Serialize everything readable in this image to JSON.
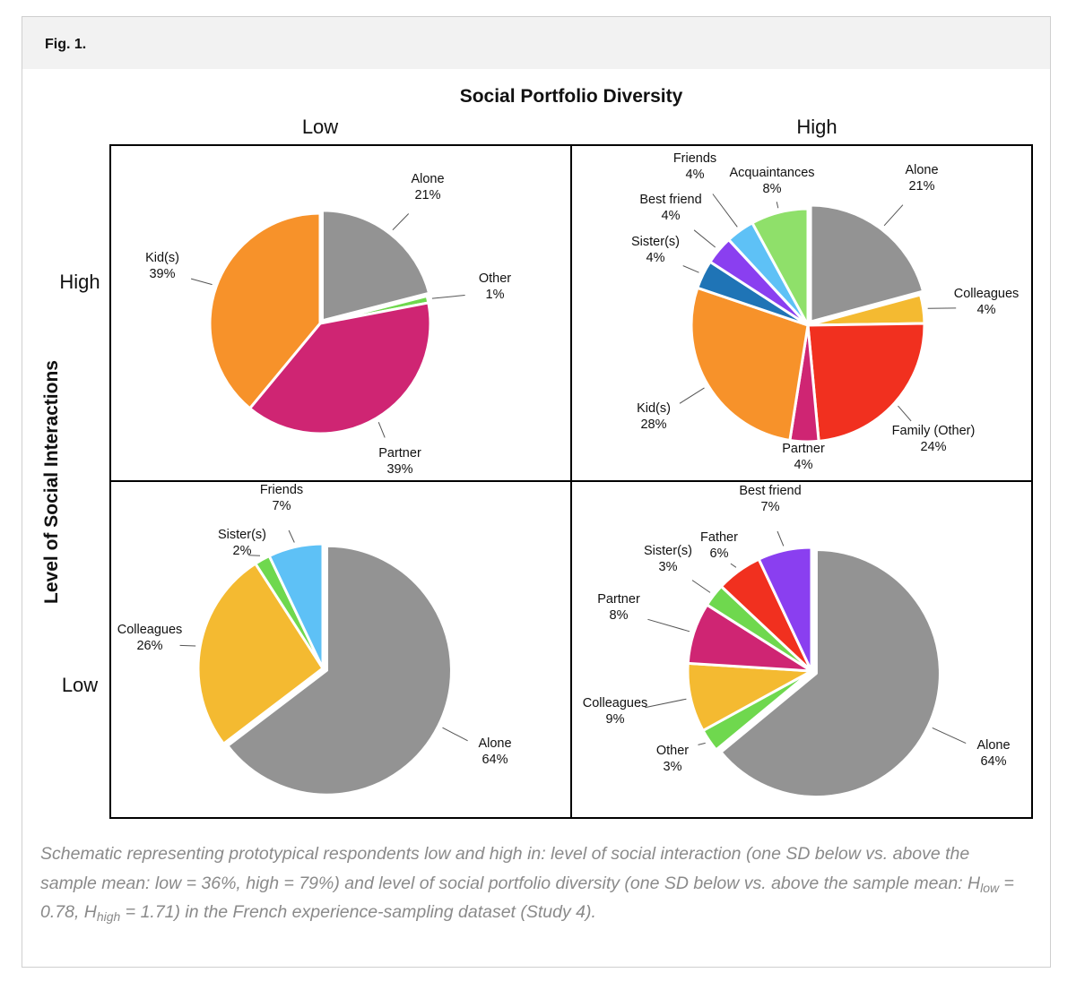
{
  "figure": {
    "label": "Fig. 1.",
    "caption_parts": {
      "p1": "Schematic representing prototypical respondents low and high in: level of social interaction (one SD below vs. above the sample mean: low = 36%, high = 79%) and level of social portfolio diversity (one SD below vs. above the sample mean: H",
      "sub_low": "low",
      "p2": " = 0.78, H",
      "sub_high": "high",
      "p3": " = 1.71) in the French experience-sampling dataset (Study 4)."
    }
  },
  "chart_data": {
    "type": "pie",
    "title": "Social Portfolio Diversity",
    "x_axis_label": "Social Portfolio Diversity",
    "y_axis_label": "Level of Social Interactions",
    "column_labels": [
      "Low",
      "High"
    ],
    "row_labels": [
      "High",
      "Low"
    ],
    "colors": {
      "gray": "#939393",
      "green": "#6fd84e",
      "magenta": "#cf2573",
      "orange": "#f7922a",
      "yellow": "#f4ba31",
      "red": "#f1301f",
      "darkblue": "#1f74b6",
      "violet": "#8a3ff0",
      "skyblue": "#5ec1f6",
      "lightgreen": "#8fe06a",
      "border": "#ffffff",
      "grid": "#000000"
    },
    "pies": [
      {
        "id": "pie-high-interaction-low-diversity",
        "row": "High",
        "column": "Low",
        "slices": [
          {
            "name": "Alone",
            "value": 21,
            "label": "21%",
            "color": "gray",
            "exploded": true
          },
          {
            "name": "Other",
            "value": 1,
            "label": "1%",
            "color": "green"
          },
          {
            "name": "Partner",
            "value": 39,
            "label": "39%",
            "color": "magenta"
          },
          {
            "name": "Kid(s)",
            "value": 39,
            "label": "39%",
            "color": "orange"
          }
        ]
      },
      {
        "id": "pie-high-interaction-high-diversity",
        "row": "High",
        "column": "High",
        "slices": [
          {
            "name": "Alone",
            "value": 21,
            "label": "21%",
            "color": "gray",
            "exploded": true
          },
          {
            "name": "Colleagues",
            "value": 4,
            "label": "4%",
            "color": "yellow"
          },
          {
            "name": "Family (Other)",
            "value": 24,
            "label": "24%",
            "color": "red"
          },
          {
            "name": "Partner",
            "value": 4,
            "label": "4%",
            "color": "magenta"
          },
          {
            "name": "Kid(s)",
            "value": 28,
            "label": "28%",
            "color": "orange"
          },
          {
            "name": "Sister(s)",
            "value": 4,
            "label": "4%",
            "color": "darkblue"
          },
          {
            "name": "Best friend",
            "value": 4,
            "label": "4%",
            "color": "violet"
          },
          {
            "name": "Friends",
            "value": 4,
            "label": "4%",
            "color": "skyblue"
          },
          {
            "name": "Acquaintances",
            "value": 8,
            "label": "8%",
            "color": "lightgreen"
          }
        ]
      },
      {
        "id": "pie-low-interaction-low-diversity",
        "row": "Low",
        "column": "Low",
        "slices": [
          {
            "name": "Alone",
            "value": 64,
            "label": "64%",
            "color": "gray",
            "exploded": true
          },
          {
            "name": "Colleagues",
            "value": 26,
            "label": "26%",
            "color": "yellow"
          },
          {
            "name": "Sister(s)",
            "value": 2,
            "label": "2%",
            "color": "green"
          },
          {
            "name": "Friends",
            "value": 7,
            "label": "7%",
            "color": "skyblue"
          }
        ]
      },
      {
        "id": "pie-low-interaction-high-diversity",
        "row": "Low",
        "column": "High",
        "slices": [
          {
            "name": "Alone",
            "value": 64,
            "label": "64%",
            "color": "gray",
            "exploded": true
          },
          {
            "name": "Other",
            "value": 3,
            "label": "3%",
            "color": "green"
          },
          {
            "name": "Colleagues",
            "value": 9,
            "label": "9%",
            "color": "yellow"
          },
          {
            "name": "Partner",
            "value": 8,
            "label": "8%",
            "color": "magenta"
          },
          {
            "name": "Sister(s)",
            "value": 3,
            "label": "3%",
            "color": "green"
          },
          {
            "name": "Father",
            "value": 6,
            "label": "6%",
            "color": "red"
          },
          {
            "name": "Best friend",
            "value": 7,
            "label": "7%",
            "color": "violet"
          }
        ]
      }
    ]
  }
}
